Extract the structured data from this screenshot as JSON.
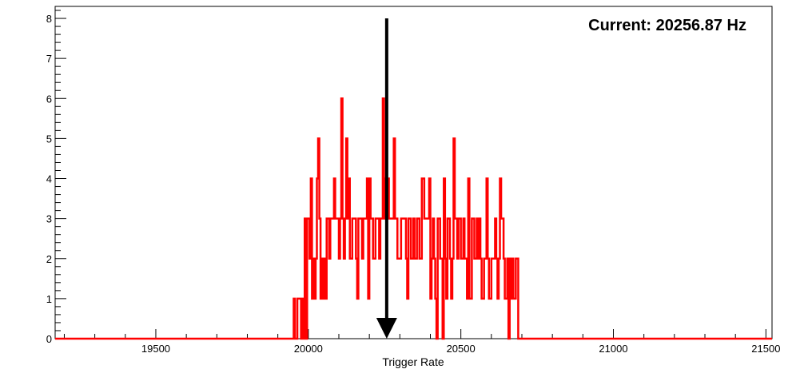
{
  "chart_data": {
    "type": "histogram-step",
    "title": "",
    "xlabel": "Trigger Rate",
    "ylabel": "",
    "xlim": [
      19170,
      21520
    ],
    "ylim": [
      0,
      8.3
    ],
    "grid": false,
    "legend": "none",
    "x_ticks": [
      19500,
      20000,
      20500,
      21000,
      21500
    ],
    "x_tick_labels": [
      "19500",
      "20000",
      "20500",
      "21000",
      "21500"
    ],
    "y_ticks": [
      0,
      1,
      2,
      3,
      4,
      5,
      6,
      7,
      8
    ],
    "y_tick_labels": [
      "0",
      "1",
      "2",
      "3",
      "4",
      "5",
      "6",
      "7",
      "8"
    ],
    "series": [
      {
        "color": "#ff0000",
        "bin_width": 4,
        "bin_starts": [
          19952,
          19956,
          19960,
          19964,
          19968,
          19972,
          19976,
          19980,
          19984,
          19988,
          19992,
          19996,
          20000,
          20004,
          20008,
          20012,
          20016,
          20020,
          20024,
          20028,
          20032,
          20036,
          20040,
          20044,
          20048,
          20052,
          20056,
          20060,
          20064,
          20068,
          20072,
          20076,
          20080,
          20084,
          20088,
          20092,
          20096,
          20100,
          20104,
          20108,
          20112,
          20116,
          20120,
          20124,
          20128,
          20132,
          20136,
          20140,
          20144,
          20148,
          20152,
          20156,
          20160,
          20164,
          20168,
          20172,
          20176,
          20180,
          20184,
          20188,
          20192,
          20196,
          20200,
          20204,
          20208,
          20212,
          20216,
          20220,
          20224,
          20228,
          20232,
          20236,
          20240,
          20244,
          20248,
          20252,
          20256,
          20260,
          20264,
          20268,
          20272,
          20276,
          20280,
          20284,
          20288,
          20292,
          20296,
          20300,
          20304,
          20308,
          20312,
          20316,
          20320,
          20324,
          20328,
          20332,
          20336,
          20340,
          20344,
          20348,
          20352,
          20356,
          20360,
          20364,
          20368,
          20372,
          20376,
          20380,
          20384,
          20388,
          20392,
          20396,
          20400,
          20404,
          20408,
          20412,
          20416,
          20420,
          20424,
          20428,
          20432,
          20436,
          20440,
          20444,
          20448,
          20452,
          20456,
          20460,
          20464,
          20468,
          20472,
          20476,
          20480,
          20484,
          20488,
          20492,
          20496,
          20500,
          20504,
          20508,
          20512,
          20516,
          20520,
          20524,
          20528,
          20532,
          20536,
          20540,
          20544,
          20548,
          20552,
          20556,
          20560,
          20564,
          20568,
          20572,
          20576,
          20580,
          20584,
          20588,
          20592,
          20596,
          20600,
          20604,
          20608,
          20612,
          20616,
          20620,
          20624,
          20628,
          20632,
          20636,
          20640,
          20644,
          20648,
          20652,
          20656,
          20660,
          20664,
          20668,
          20672,
          20676,
          20680,
          20684,
          20688,
          20692,
          20696,
          20700,
          20704,
          20708,
          20712,
          20716,
          20720
        ],
        "counts": [
          1,
          0,
          0,
          1,
          1,
          1,
          0,
          1,
          0,
          3,
          0,
          3,
          3,
          2,
          4,
          1,
          2,
          1,
          2,
          4,
          5,
          3,
          1,
          2,
          1,
          2,
          1,
          3,
          3,
          2,
          3,
          3,
          3,
          4,
          3,
          3,
          3,
          2,
          3,
          6,
          3,
          2,
          3,
          5,
          3,
          4,
          2,
          2,
          3,
          3,
          3,
          2,
          1,
          3,
          3,
          3,
          2,
          3,
          3,
          3,
          4,
          1,
          4,
          3,
          3,
          2,
          2,
          3,
          3,
          3,
          2,
          3,
          3,
          6,
          3,
          4,
          4,
          4,
          3,
          3,
          3,
          3,
          5,
          3,
          3,
          2,
          2,
          2,
          3,
          3,
          3,
          3,
          2,
          1,
          3,
          3,
          2,
          2,
          3,
          2,
          2,
          3,
          3,
          2,
          2,
          4,
          4,
          3,
          3,
          3,
          3,
          4,
          1,
          2,
          3,
          2,
          1,
          0,
          3,
          3,
          2,
          2,
          0,
          4,
          2,
          1,
          3,
          3,
          2,
          1,
          2,
          5,
          3,
          3,
          2,
          3,
          3,
          2,
          2,
          3,
          2,
          2,
          1,
          4,
          1,
          1,
          3,
          3,
          2,
          2,
          3,
          2,
          3,
          2,
          1,
          1,
          2,
          2,
          4,
          2,
          1,
          1,
          2,
          2,
          2,
          3,
          2,
          1,
          2,
          4,
          3,
          3,
          2,
          1,
          1,
          2,
          0,
          2,
          1,
          2,
          1,
          1,
          2,
          2,
          0
        ]
      }
    ]
  },
  "annotation": {
    "text": "Current: 20256.87 Hz",
    "arrow_x": 20256.87,
    "arrow_y_top": 8.0,
    "arrow_y_bottom": 0,
    "arrow_color": "#000000"
  }
}
